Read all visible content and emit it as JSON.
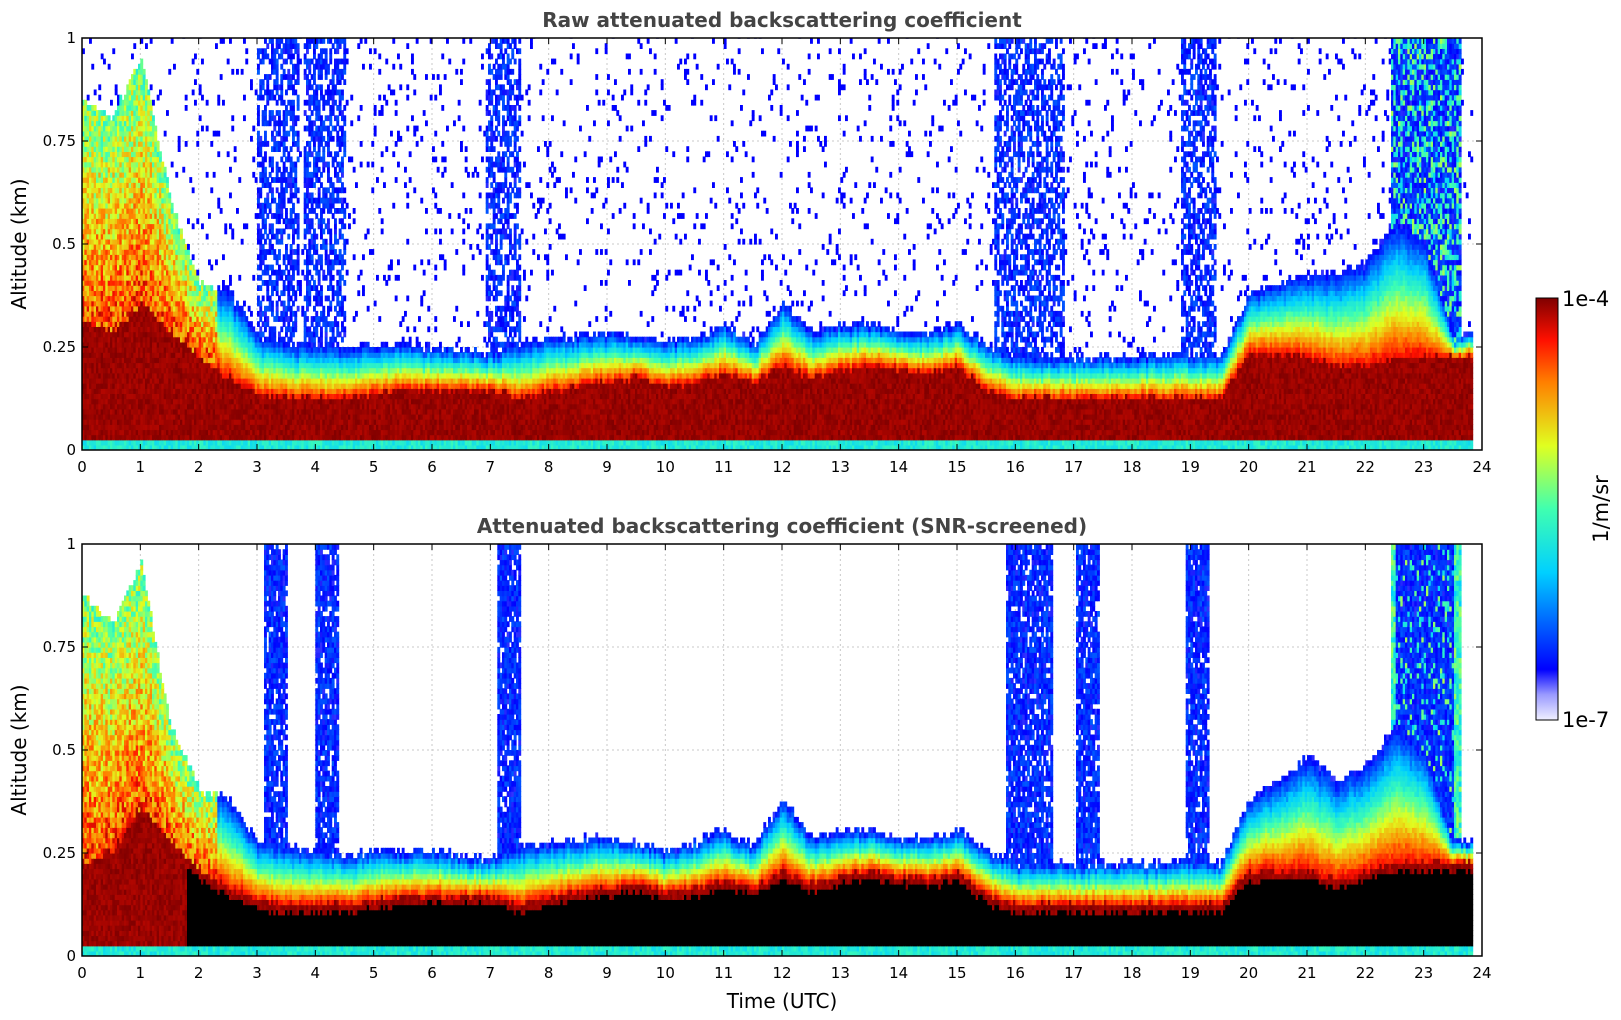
{
  "chart_data": [
    {
      "type": "heatmap",
      "title": "Raw attenuated backscattering coefficient",
      "xlabel": "",
      "ylabel": "Altitude (km)",
      "xlim": [
        0,
        24
      ],
      "ylim": [
        0,
        1
      ],
      "x_ticks": [
        "0",
        "1",
        "2",
        "3",
        "4",
        "5",
        "6",
        "7",
        "8",
        "9",
        "10",
        "11",
        "12",
        "13",
        "14",
        "15",
        "16",
        "17",
        "18",
        "19",
        "20",
        "21",
        "22",
        "23",
        "24"
      ],
      "y_ticks": [
        "0",
        "0.25",
        "0.5",
        "0.75",
        "1"
      ],
      "grid": true,
      "colorbar": {
        "label": "1/m/sr",
        "min": "1e-7",
        "max": "1e-4",
        "scale": "log",
        "colormap": "jet"
      },
      "x_hours": [
        0,
        0.5,
        1,
        1.5,
        2,
        2.5,
        3,
        3.5,
        4,
        4.5,
        5,
        5.5,
        6,
        6.5,
        7,
        7.5,
        8,
        8.5,
        9,
        9.5,
        10,
        10.5,
        11,
        11.5,
        12,
        12.5,
        13,
        13.5,
        14,
        14.5,
        15,
        15.5,
        16,
        16.5,
        17,
        17.5,
        18,
        18.5,
        19,
        19.5,
        20,
        20.5,
        21,
        21.5,
        22,
        22.5,
        23,
        23.5
      ],
      "series": [
        {
          "name": "boundary_layer_top_km",
          "values": [
            0.85,
            0.8,
            0.95,
            0.6,
            0.4,
            0.38,
            0.27,
            0.25,
            0.25,
            0.24,
            0.25,
            0.25,
            0.24,
            0.24,
            0.23,
            0.25,
            0.27,
            0.27,
            0.28,
            0.27,
            0.26,
            0.27,
            0.3,
            0.25,
            0.35,
            0.28,
            0.3,
            0.3,
            0.28,
            0.28,
            0.3,
            0.25,
            0.22,
            0.22,
            0.22,
            0.22,
            0.22,
            0.22,
            0.23,
            0.22,
            0.38,
            0.4,
            0.42,
            0.42,
            0.45,
            0.55,
            0.5,
            0.27
          ]
        },
        {
          "name": "saturated_layer_top_km",
          "values": [
            0.3,
            0.28,
            0.35,
            0.28,
            0.22,
            0.17,
            0.13,
            0.12,
            0.12,
            0.12,
            0.13,
            0.14,
            0.14,
            0.14,
            0.14,
            0.12,
            0.14,
            0.15,
            0.16,
            0.17,
            0.15,
            0.16,
            0.18,
            0.16,
            0.2,
            0.17,
            0.19,
            0.2,
            0.19,
            0.18,
            0.2,
            0.14,
            0.12,
            0.12,
            0.12,
            0.12,
            0.12,
            0.12,
            0.12,
            0.12,
            0.23,
            0.23,
            0.22,
            0.2,
            0.2,
            0.22,
            0.22,
            0.22
          ]
        },
        {
          "name": "cloud_plume_columns_hours",
          "values": [
            3.2,
            3.5,
            4.0,
            4.3,
            7.1,
            7.3,
            15.8,
            16.2,
            16.6,
            19.0,
            19.2,
            22.6,
            23.0,
            23.4
          ]
        }
      ]
    },
    {
      "type": "heatmap",
      "title": "Attenuated backscattering coefficient (SNR-screened)",
      "xlabel": "Time (UTC)",
      "ylabel": "Altitude (km)",
      "xlim": [
        0,
        24
      ],
      "ylim": [
        0,
        1
      ],
      "x_ticks": [
        "0",
        "1",
        "2",
        "3",
        "4",
        "5",
        "6",
        "7",
        "8",
        "9",
        "10",
        "11",
        "12",
        "13",
        "14",
        "15",
        "16",
        "17",
        "18",
        "19",
        "20",
        "21",
        "22",
        "23",
        "24"
      ],
      "y_ticks": [
        "0",
        "0.25",
        "0.5",
        "0.75",
        "1"
      ],
      "grid": true,
      "colorbar": {
        "label": "1/m/sr",
        "min": "1e-7",
        "max": "1e-4",
        "scale": "log",
        "colormap": "jet"
      },
      "x_hours": [
        0,
        0.5,
        1,
        1.5,
        2,
        2.5,
        3,
        3.5,
        4,
        4.5,
        5,
        5.5,
        6,
        6.5,
        7,
        7.5,
        8,
        8.5,
        9,
        9.5,
        10,
        10.5,
        11,
        11.5,
        12,
        12.5,
        13,
        13.5,
        14,
        14.5,
        15,
        15.5,
        16,
        16.5,
        17,
        17.5,
        18,
        18.5,
        19,
        19.5,
        20,
        20.5,
        21,
        21.5,
        22,
        22.5,
        23,
        23.5
      ],
      "series": [
        {
          "name": "boundary_layer_top_km",
          "values": [
            0.87,
            0.8,
            0.95,
            0.55,
            0.4,
            0.38,
            0.27,
            0.26,
            0.25,
            0.24,
            0.25,
            0.25,
            0.25,
            0.24,
            0.23,
            0.26,
            0.27,
            0.28,
            0.28,
            0.27,
            0.25,
            0.27,
            0.3,
            0.26,
            0.38,
            0.28,
            0.3,
            0.3,
            0.28,
            0.28,
            0.3,
            0.25,
            0.22,
            0.22,
            0.22,
            0.22,
            0.22,
            0.22,
            0.23,
            0.22,
            0.38,
            0.42,
            0.48,
            0.42,
            0.46,
            0.55,
            0.5,
            0.27
          ]
        },
        {
          "name": "saturated_layer_top_km",
          "values": [
            0.22,
            0.25,
            0.35,
            0.27,
            0.2,
            0.16,
            0.13,
            0.12,
            0.12,
            0.12,
            0.13,
            0.14,
            0.14,
            0.14,
            0.14,
            0.12,
            0.14,
            0.15,
            0.16,
            0.17,
            0.15,
            0.16,
            0.18,
            0.16,
            0.2,
            0.17,
            0.19,
            0.2,
            0.19,
            0.18,
            0.2,
            0.14,
            0.12,
            0.12,
            0.12,
            0.12,
            0.12,
            0.12,
            0.12,
            0.12,
            0.2,
            0.2,
            0.2,
            0.18,
            0.2,
            0.22,
            0.22,
            0.22
          ]
        },
        {
          "name": "cloud_plume_columns_hours",
          "values": [
            3.3,
            4.2,
            7.3,
            16.0,
            16.4,
            17.2,
            19.1,
            22.7,
            23.0,
            23.3
          ]
        }
      ]
    }
  ]
}
